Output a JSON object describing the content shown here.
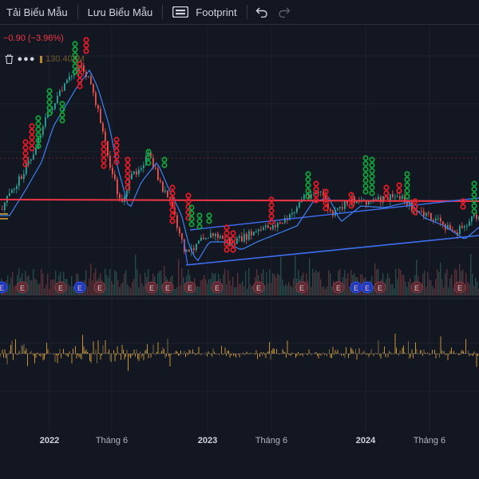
{
  "toolbar": {
    "load_template": "Tải Biểu Mẫu",
    "save_template": "Lưu Biểu Mẫu",
    "footprint": "Footprint"
  },
  "legend": {
    "change": "−0.90 (−3.96%)",
    "volume": "130.403M"
  },
  "colors": {
    "background": "#131722",
    "up": "#26a69a",
    "down": "#ef5350",
    "signal_red": "#e21c26",
    "signal_green": "#12a13a",
    "ma_line": "#3b82f6",
    "resistance": "#f23645",
    "trendline": "#3f6ff5",
    "oscillator": "#e3a835"
  },
  "icons": [
    "footprint-icon",
    "undo-icon",
    "redo-icon",
    "trash-icon",
    "more-icon"
  ],
  "xaxis": {
    "labels": [
      "2022",
      "Tháng 6",
      "2023",
      "Tháng 6",
      "2024",
      "Tháng 6"
    ]
  },
  "earnings_marker": "E"
}
